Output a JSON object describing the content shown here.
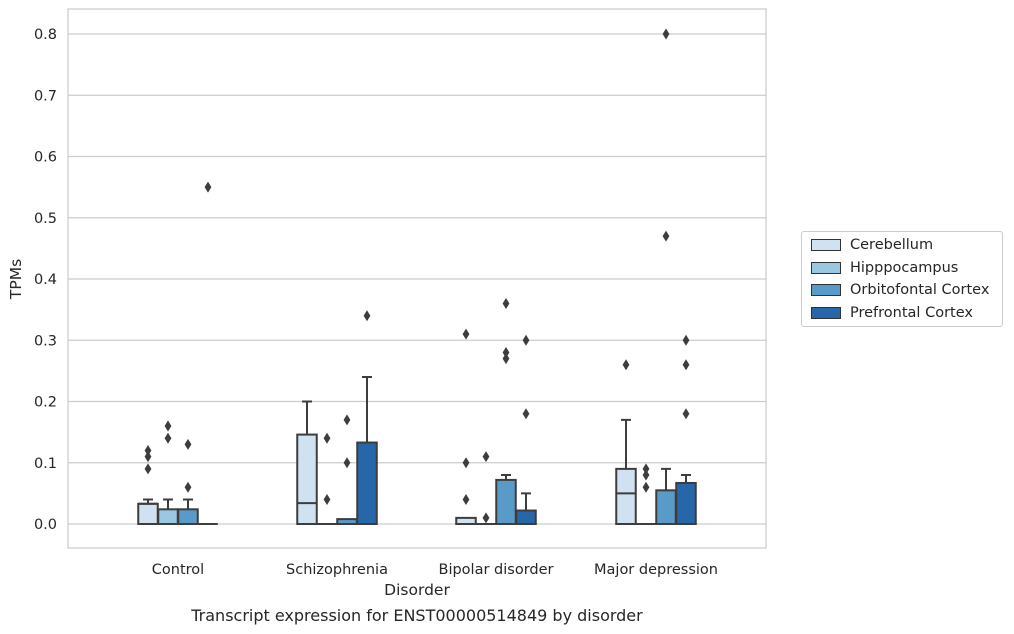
{
  "chart_data": {
    "type": "box",
    "xlabel": "Disorder",
    "ylabel": "TPMs",
    "ylim": [
      -0.04,
      0.84
    ],
    "yticks": [
      "0.0",
      "0.1",
      "0.2",
      "0.3",
      "0.4",
      "0.5",
      "0.6",
      "0.7",
      "0.8"
    ],
    "ytick_values": [
      0.0,
      0.1,
      0.2,
      0.3,
      0.4,
      0.5,
      0.6,
      0.7,
      0.8
    ],
    "grid": "horizontal",
    "legend_position": "right",
    "categories": [
      "Control",
      "Schizophrenia",
      "Bipolar disorder",
      "Major depression"
    ],
    "series": [
      {
        "name": "Cerebellum",
        "color": "#d0e1f2",
        "boxes": [
          {
            "whislo": 0,
            "q1": 0,
            "med": 0.033,
            "q3": 0.033,
            "whishi": 0.04,
            "fliers": [
              0.09,
              0.11,
              0.12
            ]
          },
          {
            "whislo": 0,
            "q1": 0,
            "med": 0.034,
            "q3": 0.146,
            "whishi": 0.2,
            "fliers": []
          },
          {
            "whislo": 0,
            "q1": 0,
            "med": 0.0,
            "q3": 0.01,
            "whishi": 0.01,
            "fliers": [
              0.04,
              0.1,
              0.31
            ]
          },
          {
            "whislo": 0,
            "q1": 0,
            "med": 0.05,
            "q3": 0.09,
            "whishi": 0.17,
            "fliers": [
              0.26
            ]
          }
        ]
      },
      {
        "name": "Hipppocampus",
        "color": "#9ac8e0",
        "boxes": [
          {
            "whislo": 0,
            "q1": 0,
            "med": 0.0,
            "q3": 0.024,
            "whishi": 0.04,
            "fliers": [
              0.14,
              0.16
            ]
          },
          {
            "whislo": 0,
            "q1": 0,
            "med": 0.0,
            "q3": 0.0,
            "whishi": 0.0,
            "fliers": [
              0.04,
              0.14
            ]
          },
          {
            "whislo": 0,
            "q1": 0,
            "med": 0.0,
            "q3": 0.0,
            "whishi": 0.0,
            "fliers": [
              0.01,
              0.11
            ]
          },
          {
            "whislo": 0,
            "q1": 0,
            "med": 0.0,
            "q3": 0.0,
            "whishi": 0.0,
            "fliers": [
              0.06,
              0.08,
              0.09
            ]
          }
        ]
      },
      {
        "name": "Orbitofontal Cortex",
        "color": "#5a9ac8",
        "boxes": [
          {
            "whislo": 0,
            "q1": 0,
            "med": 0.0,
            "q3": 0.024,
            "whishi": 0.04,
            "fliers": [
              0.06,
              0.13
            ]
          },
          {
            "whislo": 0,
            "q1": 0,
            "med": 0.0,
            "q3": 0.008,
            "whishi": 0.008,
            "fliers": [
              0.1,
              0.17
            ]
          },
          {
            "whislo": 0,
            "q1": 0,
            "med": 0.0,
            "q3": 0.072,
            "whishi": 0.08,
            "fliers": [
              0.27,
              0.28,
              0.36
            ]
          },
          {
            "whislo": 0,
            "q1": 0,
            "med": 0.0,
            "q3": 0.055,
            "whishi": 0.09,
            "fliers": [
              0.47,
              0.8
            ]
          }
        ]
      },
      {
        "name": "Prefrontal Cortex",
        "color": "#2766a8",
        "boxes": [
          {
            "whislo": 0,
            "q1": 0,
            "med": 0.0,
            "q3": 0.0,
            "whishi": 0.0,
            "fliers": [
              0.55
            ]
          },
          {
            "whislo": 0,
            "q1": 0,
            "med": 0.0,
            "q3": 0.133,
            "whishi": 0.24,
            "fliers": [
              0.34
            ]
          },
          {
            "whislo": 0,
            "q1": 0,
            "med": 0.0,
            "q3": 0.022,
            "whishi": 0.05,
            "fliers": [
              0.18,
              0.3
            ]
          },
          {
            "whislo": 0,
            "q1": 0,
            "med": 0.0,
            "q3": 0.067,
            "whishi": 0.08,
            "fliers": [
              0.18,
              0.26,
              0.3
            ]
          }
        ]
      }
    ]
  },
  "caption": "Transcript expression for ENST00000514849 by disorder"
}
